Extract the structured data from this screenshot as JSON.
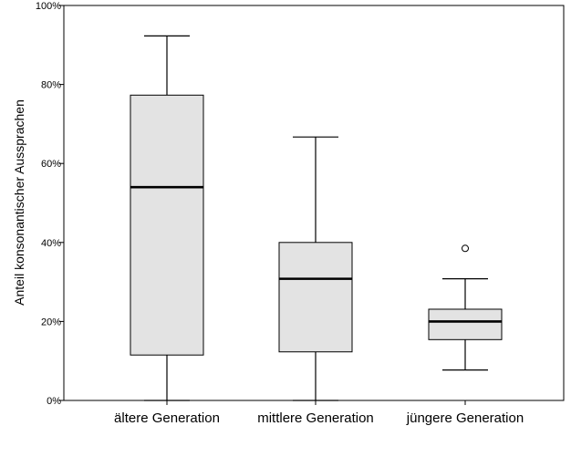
{
  "chart_data": {
    "type": "boxplot",
    "title": "",
    "xlabel": "",
    "ylabel": "Anteil konsonantischer Aussprachen",
    "ylim": [
      0,
      100
    ],
    "y_ticks": [
      {
        "value": 0,
        "label": "0%"
      },
      {
        "value": 20,
        "label": "20%"
      },
      {
        "value": 40,
        "label": "40%"
      },
      {
        "value": 60,
        "label": "60%"
      },
      {
        "value": 80,
        "label": "80%"
      },
      {
        "value": 100,
        "label": "100%"
      }
    ],
    "grid": false,
    "colors": {
      "box_fill": "#e3e3e3",
      "stroke": "#000000",
      "background": "#ffffff"
    },
    "categories": [
      "ältere Generation",
      "mittlere Generation",
      "jüngere Generation"
    ],
    "boxes": [
      {
        "name": "ältere Generation",
        "whisker_low": 0,
        "q1": 11.5,
        "median": 54,
        "q3": 77.3,
        "whisker_high": 92.3,
        "outliers": []
      },
      {
        "name": "mittlere Generation",
        "whisker_low": 0,
        "q1": 12.3,
        "median": 30.8,
        "q3": 40,
        "whisker_high": 66.7,
        "outliers": []
      },
      {
        "name": "jüngere Generation",
        "whisker_low": 7.7,
        "q1": 15.4,
        "median": 20,
        "q3": 23.1,
        "whisker_high": 30.8,
        "outliers": [
          38.5
        ]
      }
    ]
  }
}
